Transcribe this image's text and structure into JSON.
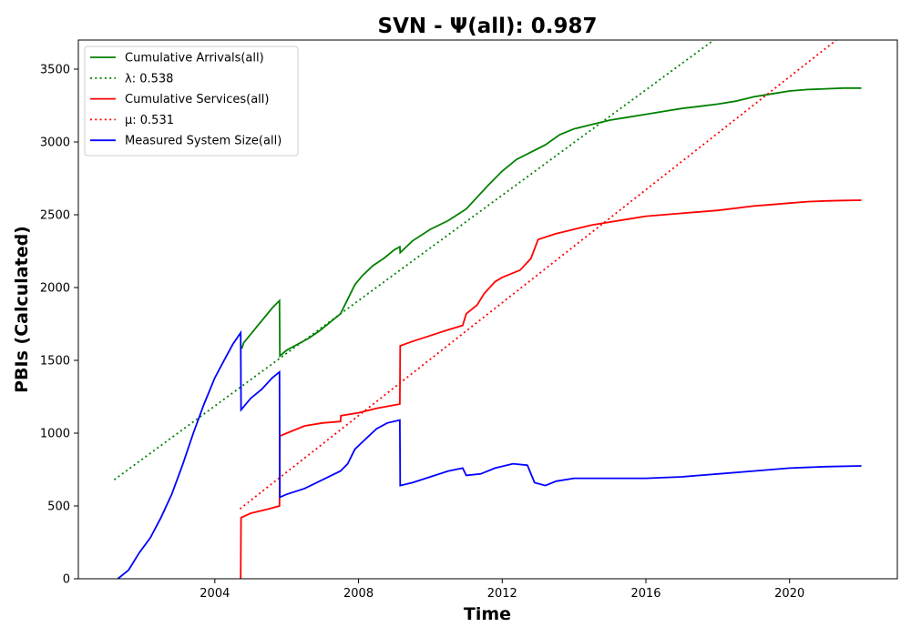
{
  "chart_data": {
    "type": "line",
    "title": "SVN -  Ψ(all): 0.987",
    "xlabel": "Time",
    "ylabel": "PBIs (Calculated)",
    "xlim": [
      2000.2,
      2023.0
    ],
    "ylim": [
      0,
      3700
    ],
    "xticks": [
      2004,
      2008,
      2012,
      2016,
      2020
    ],
    "yticks": [
      0,
      500,
      1000,
      1500,
      2000,
      2500,
      3000,
      3500
    ],
    "grid": false,
    "legend_position": "top-left",
    "series": [
      {
        "name": "Cumulative Arrivals(all)",
        "color": "#008000",
        "style": "solid",
        "x": [
          2004.75,
          2004.8,
          2005.0,
          2005.2,
          2005.4,
          2005.6,
          2005.8,
          2005.81,
          2006.0,
          2006.3,
          2006.6,
          2006.9,
          2007.2,
          2007.5,
          2007.7,
          2007.9,
          2008.1,
          2008.4,
          2008.7,
          2009.0,
          2009.15,
          2009.16,
          2009.5,
          2010.0,
          2010.5,
          2011.0,
          2011.3,
          2011.6,
          2012.0,
          2012.4,
          2012.8,
          2013.2,
          2013.6,
          2014.0,
          2014.5,
          2015.0,
          2015.5,
          2016.0,
          2016.5,
          2017.0,
          2017.5,
          2018.0,
          2018.5,
          2019.0,
          2019.5,
          2020.0,
          2020.5,
          2021.0,
          2021.5,
          2022.0
        ],
        "y": [
          1580,
          1620,
          1680,
          1740,
          1800,
          1860,
          1910,
          1530,
          1570,
          1610,
          1650,
          1700,
          1760,
          1820,
          1920,
          2020,
          2080,
          2150,
          2200,
          2260,
          2280,
          2240,
          2320,
          2400,
          2460,
          2540,
          2620,
          2700,
          2800,
          2880,
          2930,
          2980,
          3050,
          3090,
          3120,
          3150,
          3170,
          3190,
          3210,
          3230,
          3245,
          3260,
          3280,
          3310,
          3330,
          3350,
          3360,
          3365,
          3370,
          3370
        ]
      },
      {
        "name": "λ: 0.538",
        "color": "#008000",
        "style": "dotted",
        "x": [
          2001.2,
          2018.0
        ],
        "y": [
          680,
          3720
        ]
      },
      {
        "name": "Cumulative Services(all)",
        "color": "#ff0000",
        "style": "solid",
        "x": [
          2004.72,
          2004.73,
          2005.0,
          2005.5,
          2005.8,
          2005.81,
          2006.0,
          2006.5,
          2007.0,
          2007.5,
          2007.51,
          2008.0,
          2008.5,
          2009.15,
          2009.16,
          2009.5,
          2010.0,
          2010.5,
          2010.9,
          2011.0,
          2011.3,
          2011.5,
          2011.8,
          2012.0,
          2012.5,
          2012.8,
          2013.0,
          2013.5,
          2014.0,
          2014.5,
          2015.0,
          2015.5,
          2016.0,
          2016.5,
          2017.0,
          2017.5,
          2018.0,
          2018.5,
          2019.0,
          2019.5,
          2020.0,
          2020.5,
          2021.0,
          2021.5,
          2022.0
        ],
        "y": [
          0,
          420,
          450,
          480,
          500,
          980,
          1000,
          1050,
          1070,
          1080,
          1120,
          1140,
          1170,
          1200,
          1600,
          1630,
          1670,
          1710,
          1740,
          1820,
          1880,
          1960,
          2040,
          2070,
          2120,
          2200,
          2330,
          2370,
          2400,
          2430,
          2450,
          2470,
          2490,
          2500,
          2510,
          2520,
          2530,
          2545,
          2560,
          2570,
          2580,
          2590,
          2595,
          2598,
          2600
        ]
      },
      {
        "name": "μ: 0.531",
        "color": "#ff0000",
        "style": "dotted",
        "x": [
          2004.7,
          2021.3
        ],
        "y": [
          480,
          3700
        ]
      },
      {
        "name": "Measured System Size(all)",
        "color": "#0000ff",
        "style": "solid",
        "x": [
          2001.3,
          2001.6,
          2001.9,
          2002.2,
          2002.5,
          2002.8,
          2003.1,
          2003.4,
          2003.7,
          2004.0,
          2004.3,
          2004.5,
          2004.72,
          2004.73,
          2005.0,
          2005.3,
          2005.6,
          2005.8,
          2005.81,
          2006.0,
          2006.5,
          2007.0,
          2007.5,
          2007.7,
          2007.9,
          2008.2,
          2008.5,
          2008.8,
          2009.15,
          2009.16,
          2009.5,
          2010.0,
          2010.5,
          2010.9,
          2011.0,
          2011.4,
          2011.8,
          2012.3,
          2012.7,
          2012.9,
          2013.2,
          2013.5,
          2014.0,
          2015.0,
          2016.0,
          2017.0,
          2018.0,
          2019.0,
          2020.0,
          2021.0,
          2022.0
        ],
        "y": [
          0,
          60,
          180,
          280,
          420,
          580,
          780,
          1000,
          1200,
          1380,
          1520,
          1610,
          1690,
          1160,
          1240,
          1300,
          1380,
          1420,
          560,
          580,
          620,
          680,
          740,
          790,
          890,
          960,
          1030,
          1070,
          1090,
          640,
          660,
          700,
          740,
          760,
          710,
          720,
          760,
          790,
          780,
          660,
          640,
          670,
          690,
          690,
          690,
          700,
          720,
          740,
          760,
          770,
          775
        ]
      }
    ]
  }
}
